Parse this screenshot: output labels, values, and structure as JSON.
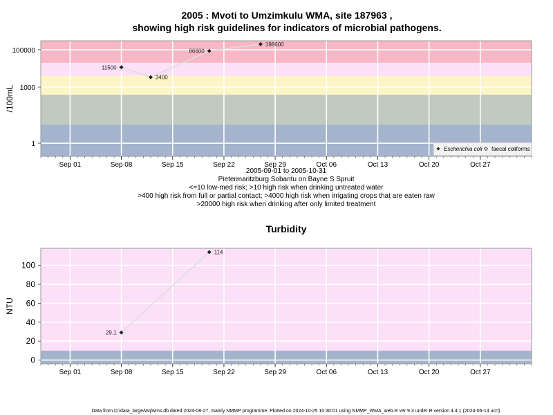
{
  "chart_data": [
    {
      "type": "scatter",
      "title_line1": "2005 : Mvoti to Umzimkulu WMA, site 187963 ,",
      "title_line2": "showing high risk guidelines for indicators of microbial pathogens.",
      "ylabel": "/100mL",
      "yscale": "log",
      "ylim": [
        0.2,
        300000
      ],
      "yticks": [
        1,
        1000,
        100000
      ],
      "ytick_labels": [
        "1",
        "1000",
        "100000"
      ],
      "xlim": [
        "2005-08-28",
        "2005-11-03"
      ],
      "xticks": [
        "2005-09-01",
        "2005-09-08",
        "2005-09-15",
        "2005-09-22",
        "2005-09-29",
        "2005-10-06",
        "2005-10-13",
        "2005-10-20",
        "2005-10-27"
      ],
      "xtick_labels": [
        "Sep 01",
        "Sep 08",
        "Sep 15",
        "Sep 22",
        "Sep 29",
        "Oct 06",
        "Oct 13",
        "Oct 20",
        "Oct 27"
      ],
      "bands": [
        {
          "from": 0.2,
          "to": 10,
          "color": "#a3b4cc"
        },
        {
          "from": 10,
          "to": 400,
          "color": "#c1cac0"
        },
        {
          "from": 400,
          "to": 4000,
          "color": "#fdf5c6"
        },
        {
          "from": 4000,
          "to": 20000,
          "color": "#fbe0f8"
        },
        {
          "from": 20000,
          "to": 300000,
          "color": "#f8b7c5"
        }
      ],
      "series": [
        {
          "name": "Escherichia coli",
          "marker": "filled-diamond",
          "points": [
            {
              "date": "2005-09-08",
              "value": 11500,
              "label": "11500",
              "label_side": "left"
            },
            {
              "date": "2005-09-12",
              "value": 3400,
              "label": "3400",
              "label_side": "right"
            },
            {
              "date": "2005-09-20",
              "value": 86600,
              "label": "86600",
              "label_side": "left"
            },
            {
              "date": "2005-09-27",
              "value": 198600,
              "label": "198600",
              "label_side": "right"
            }
          ]
        },
        {
          "name": "faecal coliforms",
          "marker": "open-diamond",
          "points": []
        }
      ],
      "legend_position": "bottom-right",
      "notes": [
        "2005-09-01 to 2005-10-31",
        "Pietermaritzburg Sobantu on Bayne S Spruit",
        "<=10 low-med risk; >10 high risk when drinking untreated water",
        ">400 high risk from full or partial contact; >4000 high risk when irrigating crops that are eaten raw",
        ">20000 high risk when drinking after only limited treatment"
      ]
    },
    {
      "type": "scatter",
      "title": "Turbidity",
      "ylabel": "NTU",
      "yscale": "linear",
      "ylim": [
        -4,
        118
      ],
      "yticks": [
        0,
        20,
        40,
        60,
        80,
        100
      ],
      "ytick_labels": [
        "0",
        "20",
        "40",
        "60",
        "80",
        "100"
      ],
      "xlim": [
        "2005-08-28",
        "2005-11-03"
      ],
      "xticks": [
        "2005-09-01",
        "2005-09-08",
        "2005-09-15",
        "2005-09-22",
        "2005-09-29",
        "2005-10-06",
        "2005-10-13",
        "2005-10-20",
        "2005-10-27"
      ],
      "xtick_labels": [
        "Sep 01",
        "Sep 08",
        "Sep 15",
        "Sep 22",
        "Sep 29",
        "Oct 06",
        "Oct 13",
        "Oct 20",
        "Oct 27"
      ],
      "bands": [
        {
          "from": -4,
          "to": 10,
          "color": "#a3b4cc"
        },
        {
          "from": 10,
          "to": 118,
          "color": "#fbe0f8"
        }
      ],
      "series": [
        {
          "marker": "filled-diamond",
          "points": [
            {
              "date": "2005-09-08",
              "value": 29.1,
              "label": "29.1",
              "label_side": "left"
            },
            {
              "date": "2005-09-20",
              "value": 114,
              "label": "114",
              "label_side": "right"
            }
          ]
        }
      ]
    }
  ],
  "footer": "Data from D:/data_large/wq/wms.db dated 2024-08-27, mainly NMMP programme. Plotted on 2024-10-25 10:30:01 using NMMP_WMA_web.R ver 9.3 under R version 4.4.1 (2024-06-14 ucrt)"
}
